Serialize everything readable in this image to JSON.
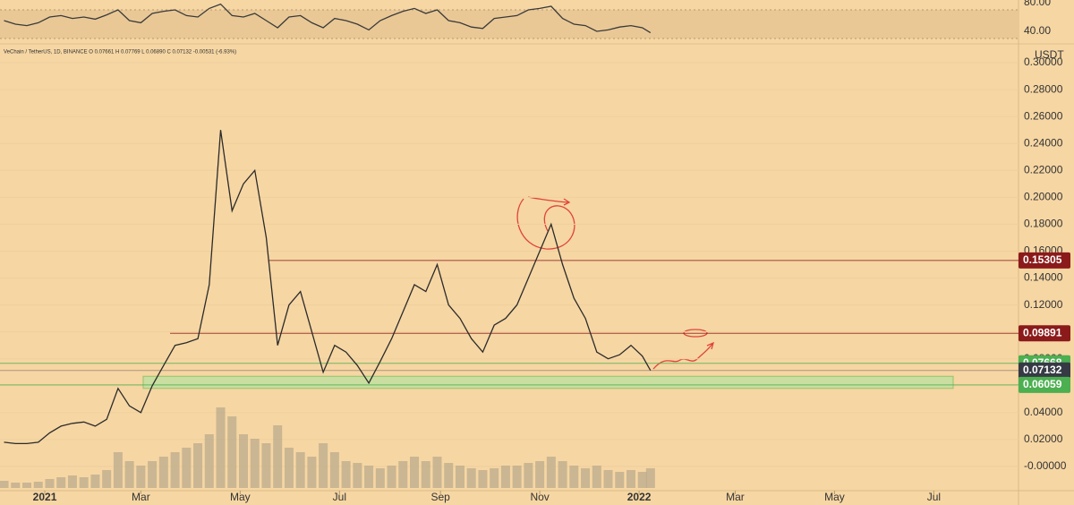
{
  "header": {
    "legend": "VeChain / TetherUS, 1D, BINANCE  O 0.07661  H 0.07769  L 0.06890  C 0.07132  -0.00531 (-6.93%)",
    "currency": "USDT"
  },
  "chart_data": [
    {
      "type": "line",
      "color": "#3a3a3a",
      "x": [
        -25,
        -18,
        -11,
        -4,
        3,
        10,
        17,
        24,
        31,
        38,
        45,
        52,
        59,
        66,
        73,
        80,
        87,
        94,
        101,
        108,
        115,
        122,
        129,
        136,
        143,
        150,
        157,
        164,
        171,
        178,
        185,
        192,
        199,
        206,
        213,
        220,
        227,
        234,
        241,
        248,
        255,
        262,
        269,
        276,
        283,
        290,
        297,
        304,
        311,
        318,
        325,
        332,
        339,
        346,
        353,
        360,
        367,
        372
      ],
      "values": [
        55,
        50,
        48,
        52,
        60,
        62,
        58,
        60,
        57,
        63,
        70,
        55,
        52,
        65,
        68,
        70,
        62,
        60,
        72,
        78,
        62,
        60,
        65,
        55,
        45,
        60,
        62,
        52,
        45,
        58,
        55,
        50,
        42,
        55,
        62,
        68,
        72,
        65,
        70,
        55,
        52,
        46,
        44,
        58,
        60,
        62,
        70,
        72,
        75,
        58,
        50,
        48,
        40,
        42,
        46,
        48,
        45,
        38
      ],
      "xlim": [
        -27.5,
        598
      ],
      "ylim": [
        25,
        83.75
      ],
      "band": [
        30,
        70
      ],
      "yticks": [
        {
          "value": 40,
          "label": "40.00"
        },
        {
          "value": 80,
          "label": "80.00"
        }
      ]
    },
    {
      "type": "line",
      "color": "#2b2b2b",
      "x": [
        -25,
        -18,
        -11,
        -4,
        3,
        10,
        17,
        24,
        31,
        38,
        45,
        52,
        59,
        66,
        73,
        80,
        87,
        94,
        101,
        108,
        115,
        122,
        129,
        136,
        143,
        150,
        157,
        164,
        171,
        178,
        185,
        192,
        199,
        206,
        213,
        220,
        227,
        234,
        241,
        248,
        255,
        262,
        269,
        276,
        283,
        290,
        297,
        304,
        311,
        318,
        325,
        332,
        339,
        346,
        353,
        360,
        367,
        372
      ],
      "values": [
        0.018,
        0.017,
        0.017,
        0.018,
        0.025,
        0.03,
        0.032,
        0.033,
        0.03,
        0.035,
        0.058,
        0.045,
        0.04,
        0.06,
        0.075,
        0.09,
        0.092,
        0.095,
        0.135,
        0.25,
        0.19,
        0.21,
        0.22,
        0.17,
        0.09,
        0.12,
        0.13,
        0.1,
        0.07,
        0.09,
        0.085,
        0.075,
        0.062,
        0.078,
        0.095,
        0.115,
        0.135,
        0.13,
        0.15,
        0.12,
        0.11,
        0.095,
        0.085,
        0.105,
        0.11,
        0.12,
        0.14,
        0.16,
        0.18,
        0.15,
        0.125,
        0.11,
        0.085,
        0.08,
        0.083,
        0.09,
        0.082,
        0.07132
      ],
      "volume": [
        8,
        6,
        6,
        7,
        10,
        12,
        14,
        12,
        15,
        20,
        40,
        30,
        25,
        30,
        35,
        40,
        45,
        50,
        60,
        90,
        80,
        60,
        55,
        50,
        70,
        45,
        40,
        35,
        50,
        40,
        30,
        28,
        25,
        22,
        25,
        30,
        35,
        30,
        35,
        28,
        25,
        22,
        20,
        22,
        25,
        25,
        28,
        30,
        35,
        30,
        25,
        22,
        25,
        20,
        18,
        20,
        18,
        22
      ],
      "volume_color": "#b8a88a",
      "xlim": [
        -27.5,
        598
      ],
      "ylim": [
        -0.018,
        0.312
      ],
      "xticks": [
        {
          "value": 0,
          "label": "2021"
        },
        {
          "value": 59,
          "label": "Mar"
        },
        {
          "value": 120,
          "label": "May"
        },
        {
          "value": 181,
          "label": "Jul"
        },
        {
          "value": 243,
          "label": "Sep"
        },
        {
          "value": 304,
          "label": "Nov"
        },
        {
          "value": 365,
          "label": "2022"
        },
        {
          "value": 424,
          "label": "Mar"
        },
        {
          "value": 485,
          "label": "May"
        },
        {
          "value": 546,
          "label": "Jul"
        }
      ],
      "yticks": [
        {
          "value": 0,
          "label": "-0.00000"
        },
        {
          "value": 0.02,
          "label": "0.02000"
        },
        {
          "value": 0.04,
          "label": "0.04000"
        },
        {
          "value": 0.06,
          "label": "0.06000"
        },
        {
          "value": 0.08,
          "label": "0.08000"
        },
        {
          "value": 0.1,
          "label": "0.10000"
        },
        {
          "value": 0.12,
          "label": "0.12000"
        },
        {
          "value": 0.14,
          "label": "0.14000"
        },
        {
          "value": 0.16,
          "label": "0.16000"
        },
        {
          "value": 0.18,
          "label": "0.18000"
        },
        {
          "value": 0.2,
          "label": "0.20000"
        },
        {
          "value": 0.22,
          "label": "0.22000"
        },
        {
          "value": 0.24,
          "label": "0.24000"
        },
        {
          "value": 0.26,
          "label": "0.26000"
        },
        {
          "value": 0.28,
          "label": "0.28000"
        },
        {
          "value": 0.3,
          "label": "0.30000"
        }
      ],
      "levels": [
        0.15305,
        0.09891,
        0.07668,
        0.07132,
        0.06059
      ],
      "level_colors": [
        "#8b1a1a",
        "#8b1a1a",
        "#4caf50",
        "#363a45",
        "#4caf50"
      ],
      "support_zone": [
        0.058,
        0.067
      ],
      "zone_color": "#bfe0a0"
    }
  ]
}
